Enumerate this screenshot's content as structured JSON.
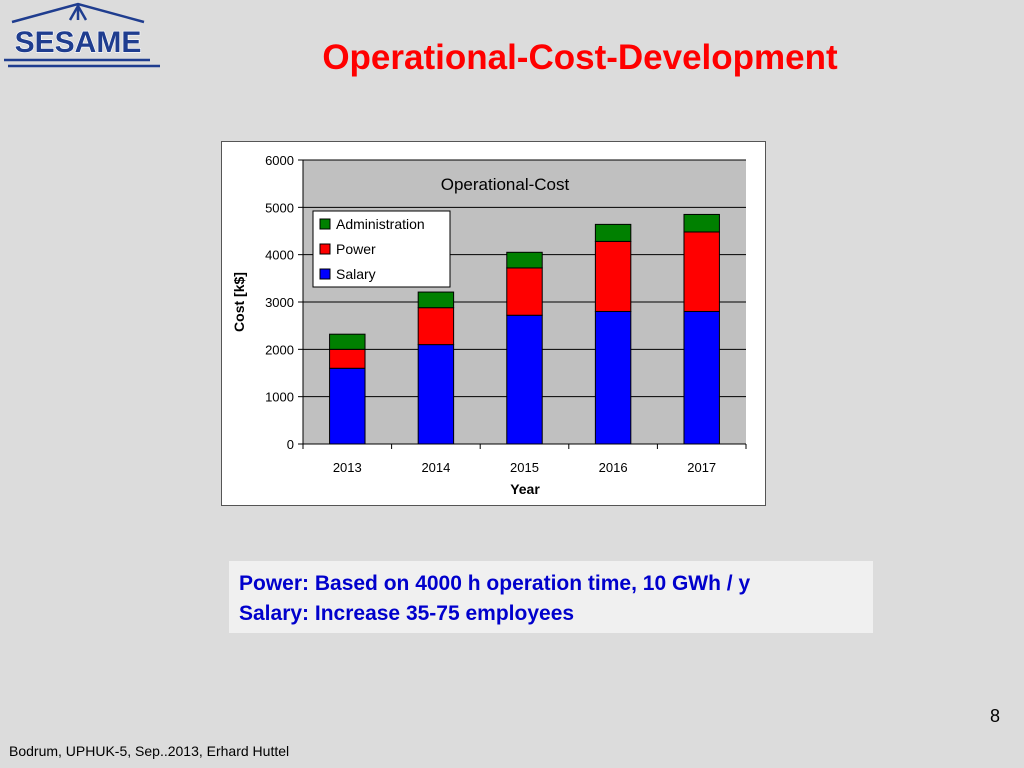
{
  "logo": {
    "text": "SESAME",
    "color": "#1f3d8f"
  },
  "slide": {
    "title": "Operational-Cost-Development",
    "title_color": "#ff0000",
    "notes": [
      "Power: Based on 4000 h operation time, 10 GWh / y",
      "Salary: Increase 35-75 employees"
    ],
    "page_number": "8",
    "footer": "Bodrum, UPHUK-5, Sep..2013, Erhard Huttel"
  },
  "chart_data": {
    "type": "bar",
    "stacked": true,
    "title": "Operational-Cost",
    "xlabel": "Year",
    "ylabel": "Cost [k$]",
    "ylim": [
      0,
      6000
    ],
    "yticks": [
      0,
      1000,
      2000,
      3000,
      4000,
      5000,
      6000
    ],
    "grid": true,
    "legend_position": "upper-left",
    "categories": [
      "2013",
      "2014",
      "2015",
      "2016",
      "2017"
    ],
    "series": [
      {
        "name": "Salary",
        "color": "#0000ff",
        "values": [
          1600,
          2100,
          2720,
          2800,
          2800
        ]
      },
      {
        "name": "Power",
        "color": "#ff0000",
        "values": [
          400,
          780,
          1000,
          1480,
          1680
        ]
      },
      {
        "name": "Administration",
        "color": "#008000",
        "values": [
          320,
          330,
          330,
          360,
          370
        ]
      }
    ],
    "legend_order": [
      "Administration",
      "Power",
      "Salary"
    ]
  }
}
